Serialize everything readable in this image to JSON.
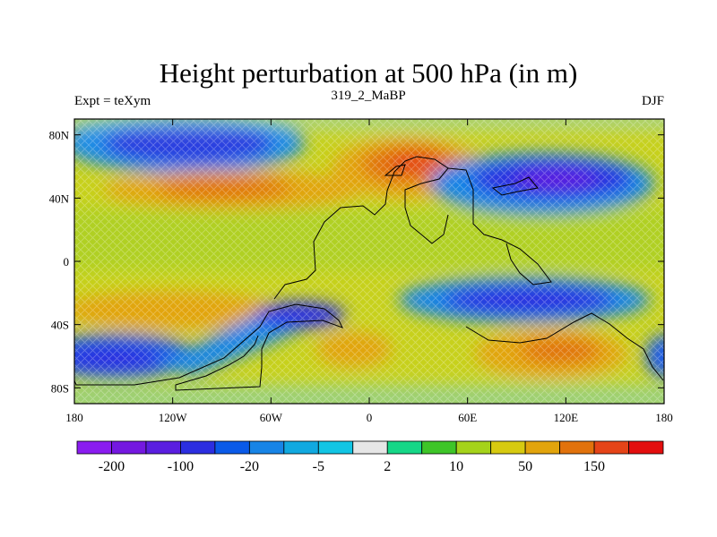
{
  "title": "Height perturbation at 500 hPa (in m)",
  "left_label": "Expt = teXym",
  "center_label": "319_2_MaBP",
  "right_label": "DJF",
  "chart_data": {
    "type": "heatmap",
    "projection": "cylindrical-equidistant",
    "variable": "500 hPa height perturbation",
    "units": "m",
    "x_range": [
      -180,
      180
    ],
    "y_range": [
      -90,
      90
    ],
    "x_ticks": [
      {
        "value": -180,
        "label": "180"
      },
      {
        "value": -120,
        "label": "120W"
      },
      {
        "value": -60,
        "label": "60W"
      },
      {
        "value": 0,
        "label": "0"
      },
      {
        "value": 60,
        "label": "60E"
      },
      {
        "value": 120,
        "label": "120E"
      },
      {
        "value": 180,
        "label": "180"
      }
    ],
    "y_ticks": [
      {
        "value": 80,
        "label": "80N"
      },
      {
        "value": 40,
        "label": "40N"
      },
      {
        "value": 0,
        "label": "0"
      },
      {
        "value": -40,
        "label": "40S"
      },
      {
        "value": -80,
        "label": "80S"
      }
    ],
    "colorbar": {
      "colors": [
        "#8a1cf0",
        "#7418e0",
        "#5a1ee0",
        "#2c2ee0",
        "#0a5ae8",
        "#1784e6",
        "#11a9e0",
        "#12c5e4",
        "#e6e6e6",
        "#16d787",
        "#3ec528",
        "#a5d31a",
        "#d7ca10",
        "#e2a40c",
        "#e1720c",
        "#e54418",
        "#e30e0e"
      ],
      "tick_labels": [
        {
          "index": 1,
          "label": "-200"
        },
        {
          "index": 3,
          "label": "-100"
        },
        {
          "index": 5,
          "label": "-20"
        },
        {
          "index": 7,
          "label": "-5"
        },
        {
          "index": 9,
          "label": "2"
        },
        {
          "index": 11,
          "label": "10"
        },
        {
          "index": 13,
          "label": "50"
        },
        {
          "index": 15,
          "label": "150"
        }
      ]
    },
    "features": [
      {
        "lon": -115,
        "lat": 65,
        "value": -110
      },
      {
        "lon": -110,
        "lat": 32,
        "value": 60
      },
      {
        "lon": 25,
        "lat": 52,
        "value": 130
      },
      {
        "lon": 120,
        "lat": 45,
        "value": -140
      },
      {
        "lon": 120,
        "lat": -25,
        "value": -110
      },
      {
        "lon": -120,
        "lat": -35,
        "value": 55
      },
      {
        "lon": -20,
        "lat": -60,
        "value": 60
      },
      {
        "lon": 105,
        "lat": -58,
        "value": 70
      },
      {
        "lon": -165,
        "lat": -55,
        "value": -120
      },
      {
        "lon": -65,
        "lat": -48,
        "value": -100
      },
      {
        "lon": 180,
        "lat": -55,
        "value": -60
      }
    ]
  }
}
